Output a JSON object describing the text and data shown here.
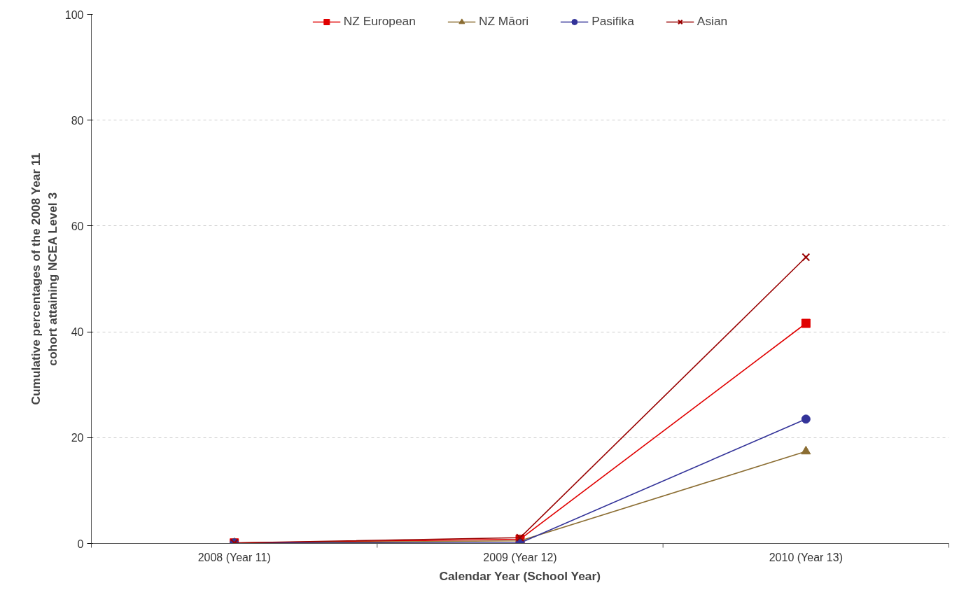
{
  "chart_data": {
    "type": "line",
    "xlabel": "Calendar Year (School Year)",
    "ylabel": "Cumulative percentages of the 2008 Year 11\ncohort attaining NCEA Level 3",
    "categories": [
      "2008 (Year 11)",
      "2009 (Year 12)",
      "2010 (Year 13)"
    ],
    "ylim": [
      0,
      100
    ],
    "yticks": [
      0,
      20,
      40,
      60,
      80,
      100
    ],
    "grid": "y",
    "legend": "top",
    "series": [
      {
        "name": "NZ European",
        "color": "#e00000",
        "marker": "square",
        "values": [
          0.1,
          0.8,
          41.6
        ]
      },
      {
        "name": "NZ Māori",
        "color": "#8b6d32",
        "marker": "triangle",
        "values": [
          0.1,
          0.5,
          17.4
        ]
      },
      {
        "name": "Pasifika",
        "color": "#333399",
        "marker": "circle",
        "values": [
          0.1,
          0.1,
          23.5
        ]
      },
      {
        "name": "Asian",
        "color": "#990000",
        "marker": "x",
        "values": [
          0.1,
          1.1,
          54.1
        ]
      }
    ]
  }
}
